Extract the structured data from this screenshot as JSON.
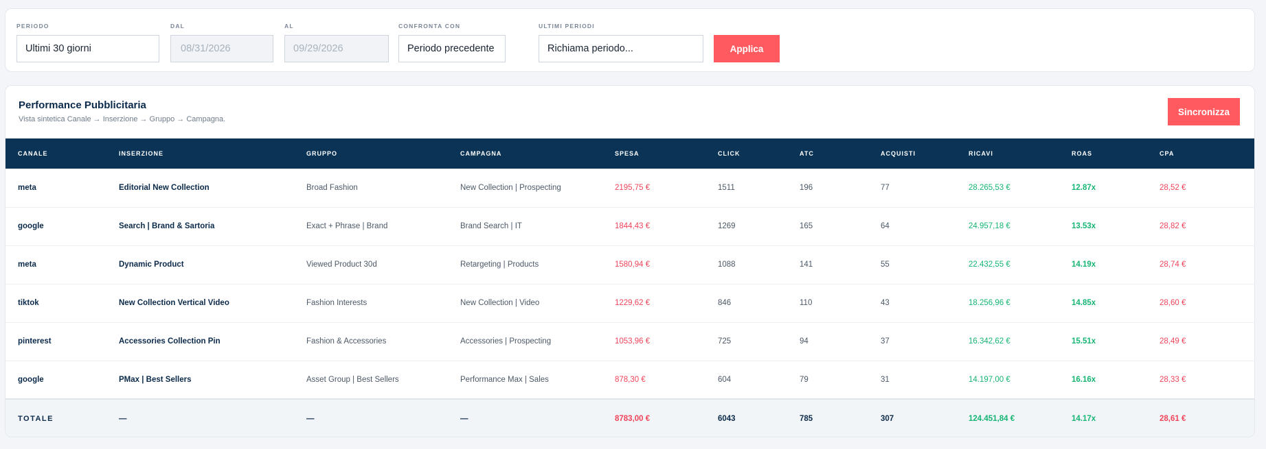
{
  "filters": {
    "periodo": {
      "label": "PERIODO",
      "value": "Ultimi 30 giorni"
    },
    "dal": {
      "label": "DAL",
      "placeholder": "08/31/2026"
    },
    "al": {
      "label": "AL",
      "placeholder": "09/29/2026"
    },
    "confronta": {
      "label": "CONFRONTA CON",
      "value": "Periodo precedente"
    },
    "ultimi": {
      "label": "ULTIMI PERIODI",
      "value": "Richiama periodo..."
    },
    "apply_label": "Applica"
  },
  "performance": {
    "title": "Performance Pubblicitaria",
    "subtitle": "Vista sintetica Canale → Inserzione → Gruppo → Campagna.",
    "sync_label": "Sincronizza",
    "columns": [
      "CANALE",
      "INSERZIONE",
      "GRUPPO",
      "CAMPAGNA",
      "SPESA",
      "CLICK",
      "ATC",
      "ACQUISTI",
      "RICAVI",
      "ROAS",
      "CPA"
    ],
    "rows": [
      [
        "meta",
        "Editorial New Collection",
        "Broad Fashion",
        "New Collection | Prospecting",
        "2195,75 €",
        "1511",
        "196",
        "77",
        "28.265,53 €",
        "12.87x",
        "28,52 €"
      ],
      [
        "google",
        "Search | Brand & Sartoria",
        "Exact + Phrase | Brand",
        "Brand Search | IT",
        "1844,43 €",
        "1269",
        "165",
        "64",
        "24.957,18 €",
        "13.53x",
        "28,82 €"
      ],
      [
        "meta",
        "Dynamic Product",
        "Viewed Product 30d",
        "Retargeting | Products",
        "1580,94 €",
        "1088",
        "141",
        "55",
        "22.432,55 €",
        "14.19x",
        "28,74 €"
      ],
      [
        "tiktok",
        "New Collection Vertical Video",
        "Fashion Interests",
        "New Collection | Video",
        "1229,62 €",
        "846",
        "110",
        "43",
        "18.256,96 €",
        "14.85x",
        "28,60 €"
      ],
      [
        "pinterest",
        "Accessories Collection Pin",
        "Fashion & Accessories",
        "Accessories | Prospecting",
        "1053,96 €",
        "725",
        "94",
        "37",
        "16.342,62 €",
        "15.51x",
        "28,49 €"
      ],
      [
        "google",
        "PMax | Best Sellers",
        "Asset Group | Best Sellers",
        "Performance Max | Sales",
        "878,30 €",
        "604",
        "79",
        "31",
        "14.197,00 €",
        "16.16x",
        "28,33 €"
      ]
    ],
    "totals": [
      "TOTALE",
      "—",
      "—",
      "—",
      "8783,00 €",
      "6043",
      "785",
      "307",
      "124.451,84 €",
      "14.17x",
      "28,61 €"
    ]
  },
  "colors": {
    "accent": "#ff5a5f",
    "header_bg": "#0a3356",
    "negative": "#f0445a",
    "positive": "#16b574"
  }
}
